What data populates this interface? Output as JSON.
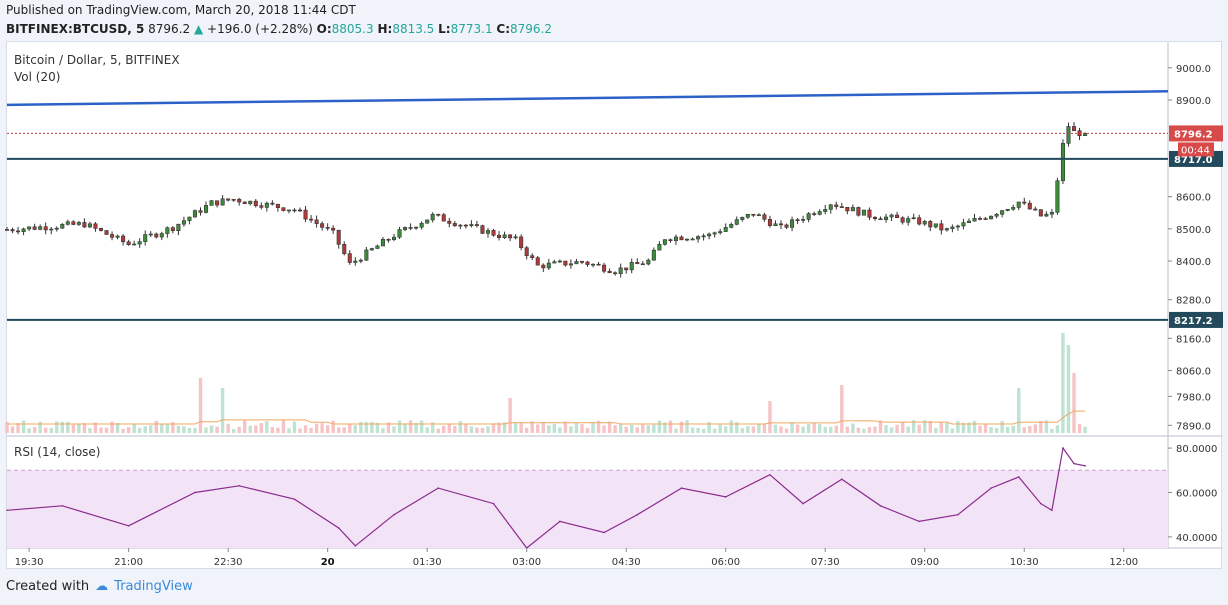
{
  "header": {
    "published": "Published on TradingView.com, March 20, 2018 11:44 CDT",
    "symbol": "BITFINEX:BTCUSD, 5",
    "last": "8796.2",
    "change": "+196.0 (+2.28%)",
    "o_label": "O:",
    "o": "8805.3",
    "h_label": "H:",
    "h": "8813.5",
    "l_label": "L:",
    "l": "8773.1",
    "c_label": "C:",
    "c": "8796.2"
  },
  "legend": {
    "title": "Bitcoin / Dollar, 5, BITFINEX",
    "volume": "Vol (20)",
    "rsi": "RSI (14, close)"
  },
  "colors": {
    "up": "#26a69a",
    "down": "#ef5350",
    "candle_up": "#3c8c3c",
    "candle_down": "#b03a3a",
    "trendline": "#2c62c8",
    "hline": "#234a5c",
    "rsi": "#8a2b8e",
    "rsi_band": "#f3e3f7"
  },
  "footer": {
    "created_with": "Created with",
    "brand": "TradingView"
  },
  "chart_data": [
    {
      "type": "candlestick",
      "title": "Bitcoin / Dollar, 5, BITFINEX",
      "ylim": [
        7860,
        9080
      ],
      "price_ticks": [
        9000.0,
        8900.0,
        8796.2,
        8717.0,
        8600.0,
        8500.0,
        8400.0,
        8280.0,
        8217.2,
        8160.0,
        8060.0,
        7980.0,
        7890.0
      ],
      "x_ticks": [
        "19:30",
        "21:00",
        "22:30",
        "20",
        "01:30",
        "03:00",
        "04:30",
        "06:00",
        "07:30",
        "09:00",
        "10:30",
        "12:00"
      ],
      "x_range": [
        "19:10",
        "12:40"
      ],
      "last_price": {
        "value": "8796.2",
        "countdown": "00:44"
      },
      "horizontal_lines": [
        {
          "value": 8717.0,
          "label": "8717.0"
        },
        {
          "value": 8217.2,
          "label": "8217.2"
        }
      ],
      "trendline": {
        "start": {
          "x": "19:10",
          "y": 8885
        },
        "end": {
          "x": "12:40",
          "y": 8927
        }
      },
      "series_waypoints": [
        [
          "19:10",
          8498
        ],
        [
          "20:20",
          8515
        ],
        [
          "21:00",
          8452
        ],
        [
          "21:40",
          8505
        ],
        [
          "22:15",
          8580
        ],
        [
          "22:35",
          8592
        ],
        [
          "23:30",
          8560
        ],
        [
          "00:05",
          8485
        ],
        [
          "00:20",
          8390
        ],
        [
          "01:00",
          8480
        ],
        [
          "01:35",
          8540
        ],
        [
          "02:20",
          8495
        ],
        [
          "02:50",
          8465
        ],
        [
          "03:10",
          8385
        ],
        [
          "03:50",
          8398
        ],
        [
          "04:20",
          8370
        ],
        [
          "04:50",
          8400
        ],
        [
          "05:05",
          8472
        ],
        [
          "05:45",
          8480
        ],
        [
          "06:25",
          8548
        ],
        [
          "06:50",
          8502
        ],
        [
          "07:35",
          8580
        ],
        [
          "08:10",
          8542
        ],
        [
          "08:55",
          8522
        ],
        [
          "09:20",
          8495
        ],
        [
          "10:00",
          8545
        ],
        [
          "10:25",
          8583
        ],
        [
          "10:45",
          8540
        ],
        [
          "10:55",
          8545
        ],
        [
          "11:05",
          8760
        ],
        [
          "11:10",
          8820
        ],
        [
          "11:15",
          8800
        ],
        [
          "11:25",
          8796.2
        ]
      ]
    },
    {
      "type": "bar",
      "title": "Vol (20)",
      "note": "volume pane shares the price scale labels; bars coloured by candle direction",
      "spikes": [
        {
          "x": "22:05",
          "level": 0.55
        },
        {
          "x": "22:25",
          "level": 0.45
        },
        {
          "x": "02:45",
          "level": 0.35
        },
        {
          "x": "06:40",
          "level": 0.32
        },
        {
          "x": "07:45",
          "level": 0.48
        },
        {
          "x": "10:25",
          "level": 0.45
        },
        {
          "x": "11:05",
          "level": 1.0
        },
        {
          "x": "11:10",
          "level": 0.88
        },
        {
          "x": "11:15",
          "level": 0.6
        }
      ]
    },
    {
      "type": "line",
      "title": "RSI (14, close)",
      "ylim": [
        35,
        85
      ],
      "y_ticks": [
        "80.0000",
        "60.0000",
        "40.0000"
      ],
      "band_upper": 70,
      "x": [
        "19:10",
        "20:00",
        "21:00",
        "22:00",
        "22:40",
        "23:30",
        "00:10",
        "00:25",
        "01:00",
        "01:40",
        "02:30",
        "03:00",
        "03:30",
        "04:10",
        "04:40",
        "05:20",
        "06:00",
        "06:40",
        "07:10",
        "07:45",
        "08:20",
        "08:55",
        "09:30",
        "10:00",
        "10:25",
        "10:45",
        "10:55",
        "11:05",
        "11:15",
        "11:25"
      ],
      "values": [
        52,
        54,
        45,
        60,
        63,
        57,
        44,
        36,
        50,
        62,
        55,
        35,
        47,
        42,
        50,
        62,
        58,
        68,
        55,
        66,
        54,
        47,
        50,
        62,
        67,
        55,
        52,
        80,
        73,
        72
      ]
    }
  ]
}
